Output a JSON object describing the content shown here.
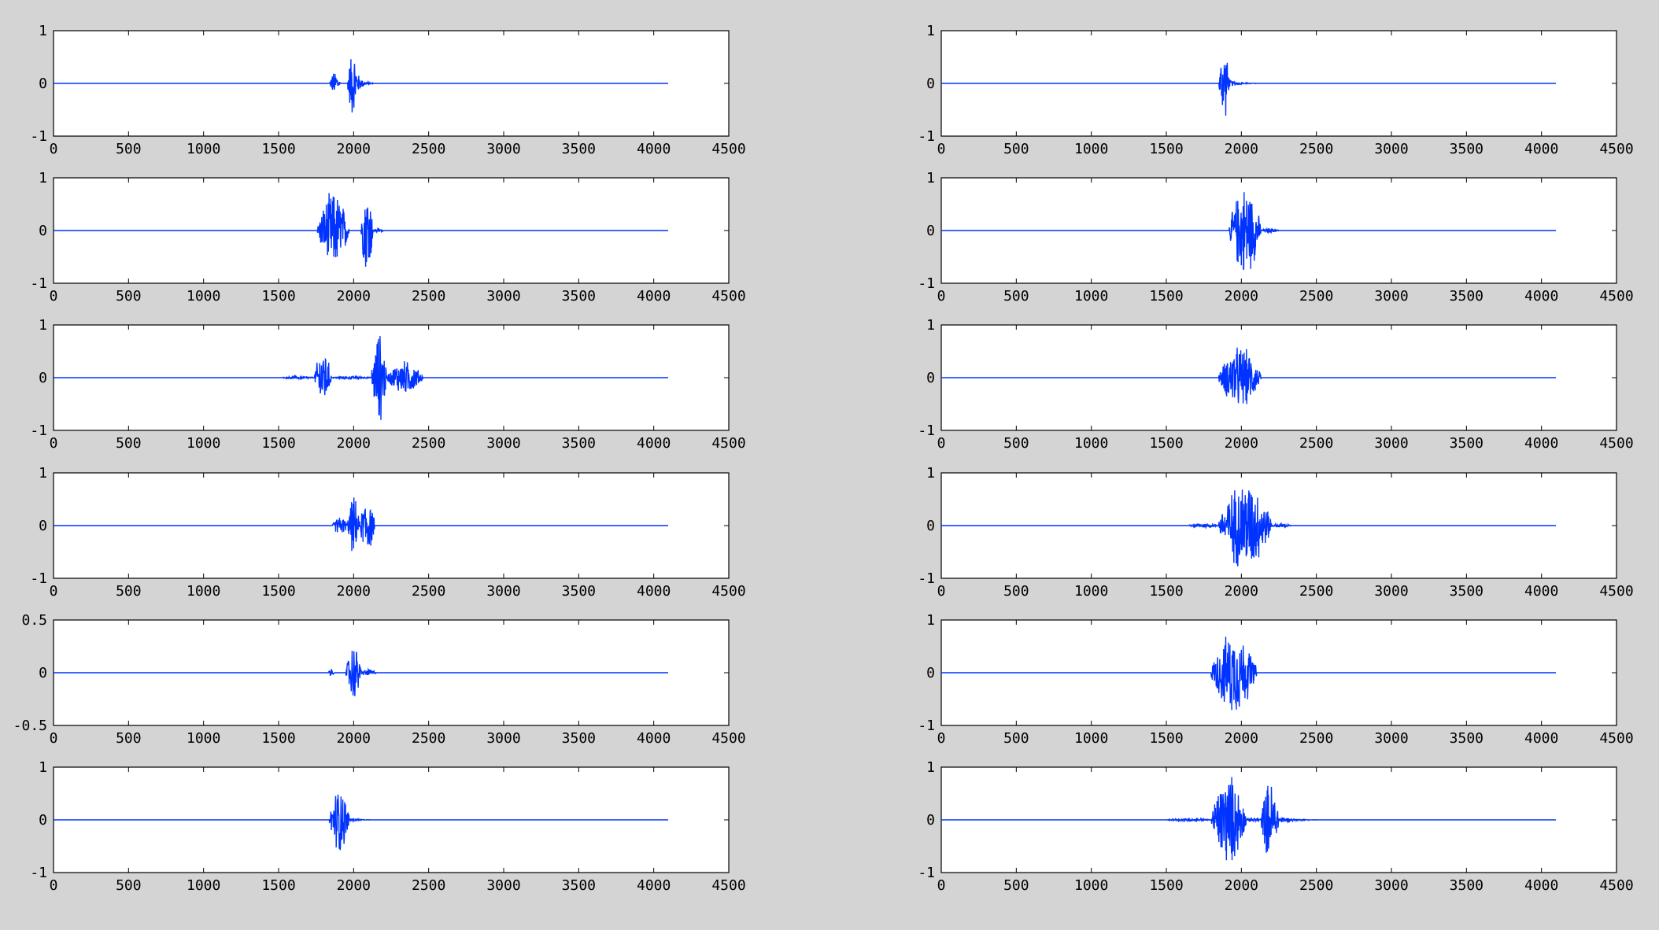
{
  "figure": {
    "background": "#d4d4d4",
    "axes_background": "#ffffff",
    "line_color": "#0033ff"
  },
  "chart_data": [
    {
      "type": "line",
      "subplot": "row1-left",
      "xlim": [
        0,
        4500
      ],
      "ylim": [
        -1,
        1
      ],
      "xticks": [
        0,
        500,
        1000,
        1500,
        2000,
        2500,
        3000,
        3500,
        4000,
        4500
      ],
      "xtick_labels": [
        "0",
        "500",
        "1000",
        "1500",
        "2000",
        "2500",
        "3000",
        "3500",
        "4000",
        "4500"
      ],
      "yticks": [
        -1,
        0,
        1
      ],
      "ytick_labels": [
        "-1",
        "0",
        "1"
      ],
      "series": [
        {
          "x_range": [
            0,
            4096
          ],
          "segments": [
            {
              "start": 1840,
              "end": 1910,
              "amp": 0.25
            },
            {
              "start": 1960,
              "end": 2030,
              "amp": 0.7
            },
            {
              "start": 2030,
              "end": 2130,
              "amp": 0.2,
              "decay": true
            }
          ]
        }
      ]
    },
    {
      "type": "line",
      "subplot": "row1-right",
      "xlim": [
        0,
        4500
      ],
      "ylim": [
        -1,
        1
      ],
      "xticks": [
        0,
        500,
        1000,
        1500,
        2000,
        2500,
        3000,
        3500,
        4000,
        4500
      ],
      "xtick_labels": [
        "0",
        "500",
        "1000",
        "1500",
        "2000",
        "2500",
        "3000",
        "3500",
        "4000",
        "4500"
      ],
      "yticks": [
        -1,
        0,
        1
      ],
      "ytick_labels": [
        "-1",
        "0",
        "1"
      ],
      "series": [
        {
          "x_range": [
            0,
            4096
          ],
          "segments": [
            {
              "start": 1850,
              "end": 1920,
              "amp": 0.75
            },
            {
              "start": 1920,
              "end": 2120,
              "amp": 0.08,
              "decay": true
            }
          ]
        }
      ]
    },
    {
      "type": "line",
      "subplot": "row2-left",
      "xlim": [
        0,
        4500
      ],
      "ylim": [
        -1,
        1
      ],
      "xticks": [
        0,
        500,
        1000,
        1500,
        2000,
        2500,
        3000,
        3500,
        4000,
        4500
      ],
      "xtick_labels": [
        "0",
        "500",
        "1000",
        "1500",
        "2000",
        "2500",
        "3000",
        "3500",
        "4000",
        "4500"
      ],
      "yticks": [
        -1,
        0,
        1
      ],
      "ytick_labels": [
        "-1",
        "0",
        "1"
      ],
      "series": [
        {
          "x_range": [
            0,
            4096
          ],
          "segments": [
            {
              "start": 1760,
              "end": 1970,
              "amp": 0.8
            },
            {
              "start": 2050,
              "end": 2130,
              "amp": 0.95
            },
            {
              "start": 2130,
              "end": 2200,
              "amp": 0.05
            }
          ]
        }
      ]
    },
    {
      "type": "line",
      "subplot": "row2-right",
      "xlim": [
        0,
        4500
      ],
      "ylim": [
        -1,
        1
      ],
      "xticks": [
        0,
        500,
        1000,
        1500,
        2000,
        2500,
        3000,
        3500,
        4000,
        4500
      ],
      "xtick_labels": [
        "0",
        "500",
        "1000",
        "1500",
        "2000",
        "2500",
        "3000",
        "3500",
        "4000",
        "4500"
      ],
      "yticks": [
        -1,
        0,
        1
      ],
      "ytick_labels": [
        "-1",
        "0",
        "1"
      ],
      "series": [
        {
          "x_range": [
            0,
            4096
          ],
          "segments": [
            {
              "start": 1920,
              "end": 2130,
              "amp": 0.95
            },
            {
              "start": 2130,
              "end": 2250,
              "amp": 0.05
            }
          ]
        }
      ]
    },
    {
      "type": "line",
      "subplot": "row3-left",
      "xlim": [
        0,
        4500
      ],
      "ylim": [
        -1,
        1
      ],
      "xticks": [
        0,
        500,
        1000,
        1500,
        2000,
        2500,
        3000,
        3500,
        4000,
        4500
      ],
      "xtick_labels": [
        "0",
        "500",
        "1000",
        "1500",
        "2000",
        "2500",
        "3000",
        "3500",
        "4000",
        "4500"
      ],
      "yticks": [
        -1,
        0,
        1
      ],
      "ytick_labels": [
        "-1",
        "0",
        "1"
      ],
      "series": [
        {
          "x_range": [
            0,
            4096
          ],
          "segments": [
            {
              "start": 1520,
              "end": 1740,
              "amp": 0.03
            },
            {
              "start": 1740,
              "end": 1850,
              "amp": 0.6
            },
            {
              "start": 1850,
              "end": 2120,
              "amp": 0.03
            },
            {
              "start": 2120,
              "end": 2220,
              "amp": 0.95
            },
            {
              "start": 2220,
              "end": 2460,
              "amp": 0.35
            }
          ]
        }
      ]
    },
    {
      "type": "line",
      "subplot": "row3-right",
      "xlim": [
        0,
        4500
      ],
      "ylim": [
        -1,
        1
      ],
      "xticks": [
        0,
        500,
        1000,
        1500,
        2000,
        2500,
        3000,
        3500,
        4000,
        4500
      ],
      "xtick_labels": [
        "0",
        "500",
        "1000",
        "1500",
        "2000",
        "2500",
        "3000",
        "3500",
        "4000",
        "4500"
      ],
      "yticks": [
        -1,
        0,
        1
      ],
      "ytick_labels": [
        "-1",
        "0",
        "1"
      ],
      "series": [
        {
          "x_range": [
            0,
            4096
          ],
          "segments": [
            {
              "start": 1850,
              "end": 2130,
              "amp": 0.65
            }
          ]
        }
      ]
    },
    {
      "type": "line",
      "subplot": "row4-left",
      "xlim": [
        0,
        4500
      ],
      "ylim": [
        -1,
        1
      ],
      "xticks": [
        0,
        500,
        1000,
        1500,
        2000,
        2500,
        3000,
        3500,
        4000,
        4500
      ],
      "xtick_labels": [
        "0",
        "500",
        "1000",
        "1500",
        "2000",
        "2500",
        "3000",
        "3500",
        "4000",
        "4500"
      ],
      "yticks": [
        -1,
        0,
        1
      ],
      "ytick_labels": [
        "-1",
        "0",
        "1"
      ],
      "series": [
        {
          "x_range": [
            0,
            4096
          ],
          "segments": [
            {
              "start": 1860,
              "end": 1960,
              "amp": 0.2
            },
            {
              "start": 1960,
              "end": 2040,
              "amp": 0.6
            },
            {
              "start": 2040,
              "end": 2140,
              "amp": 0.6
            }
          ]
        }
      ]
    },
    {
      "type": "line",
      "subplot": "row4-right",
      "xlim": [
        0,
        4500
      ],
      "ylim": [
        -1,
        1
      ],
      "xticks": [
        0,
        500,
        1000,
        1500,
        2000,
        2500,
        3000,
        3500,
        4000,
        4500
      ],
      "xtick_labels": [
        "0",
        "500",
        "1000",
        "1500",
        "2000",
        "2500",
        "3000",
        "3500",
        "4000",
        "4500"
      ],
      "yticks": [
        -1,
        0,
        1
      ],
      "ytick_labels": [
        "-1",
        "0",
        "1"
      ],
      "series": [
        {
          "x_range": [
            0,
            4096
          ],
          "segments": [
            {
              "start": 1650,
              "end": 1850,
              "amp": 0.05
            },
            {
              "start": 1850,
              "end": 2200,
              "amp": 0.95
            },
            {
              "start": 2200,
              "end": 2330,
              "amp": 0.05
            }
          ]
        }
      ]
    },
    {
      "type": "line",
      "subplot": "row5-left",
      "xlim": [
        0,
        4500
      ],
      "ylim": [
        -0.5,
        0.5
      ],
      "xticks": [
        0,
        500,
        1000,
        1500,
        2000,
        2500,
        3000,
        3500,
        4000,
        4500
      ],
      "xtick_labels": [
        "0",
        "500",
        "1000",
        "1500",
        "2000",
        "2500",
        "3000",
        "3500",
        "4000",
        "4500"
      ],
      "yticks": [
        -0.5,
        0,
        0.5
      ],
      "ytick_labels": [
        "-0.5",
        "0",
        "0.5"
      ],
      "series": [
        {
          "x_range": [
            0,
            4096
          ],
          "segments": [
            {
              "start": 1830,
              "end": 1870,
              "amp": 0.04
            },
            {
              "start": 1950,
              "end": 2050,
              "amp": 0.3
            },
            {
              "start": 2050,
              "end": 2150,
              "amp": 0.04
            }
          ]
        }
      ]
    },
    {
      "type": "line",
      "subplot": "row5-right",
      "xlim": [
        0,
        4500
      ],
      "ylim": [
        -1,
        1
      ],
      "xticks": [
        0,
        500,
        1000,
        1500,
        2000,
        2500,
        3000,
        3500,
        4000,
        4500
      ],
      "xtick_labels": [
        "0",
        "500",
        "1000",
        "1500",
        "2000",
        "2500",
        "3000",
        "3500",
        "4000",
        "4500"
      ],
      "yticks": [
        -1,
        0,
        1
      ],
      "ytick_labels": [
        "-1",
        "0",
        "1"
      ],
      "series": [
        {
          "x_range": [
            0,
            4096
          ],
          "segments": [
            {
              "start": 1800,
              "end": 2100,
              "amp": 0.85
            }
          ]
        }
      ]
    },
    {
      "type": "line",
      "subplot": "row6-left",
      "xlim": [
        0,
        4500
      ],
      "ylim": [
        -1,
        1
      ],
      "xticks": [
        0,
        500,
        1000,
        1500,
        2000,
        2500,
        3000,
        3500,
        4000,
        4500
      ],
      "xtick_labels": [
        "0",
        "500",
        "1000",
        "1500",
        "2000",
        "2500",
        "3000",
        "3500",
        "4000",
        "4500"
      ],
      "yticks": [
        -1,
        0,
        1
      ],
      "ytick_labels": [
        "-1",
        "0",
        "1"
      ],
      "series": [
        {
          "x_range": [
            0,
            4096
          ],
          "segments": [
            {
              "start": 1840,
              "end": 1970,
              "amp": 0.7
            },
            {
              "start": 1970,
              "end": 2120,
              "amp": 0.06,
              "decay": true
            }
          ]
        }
      ]
    },
    {
      "type": "line",
      "subplot": "row6-right",
      "xlim": [
        0,
        4500
      ],
      "ylim": [
        -1,
        1
      ],
      "xticks": [
        0,
        500,
        1000,
        1500,
        2000,
        2500,
        3000,
        3500,
        4000,
        4500
      ],
      "xtick_labels": [
        "0",
        "500",
        "1000",
        "1500",
        "2000",
        "2500",
        "3000",
        "3500",
        "4000",
        "4500"
      ],
      "yticks": [
        -1,
        0,
        1
      ],
      "ytick_labels": [
        "-1",
        "0",
        "1"
      ],
      "series": [
        {
          "x_range": [
            0,
            4096
          ],
          "segments": [
            {
              "start": 1500,
              "end": 1800,
              "amp": 0.03
            },
            {
              "start": 1800,
              "end": 2030,
              "amp": 0.95
            },
            {
              "start": 2030,
              "end": 2130,
              "amp": 0.05
            },
            {
              "start": 2130,
              "end": 2250,
              "amp": 0.8
            },
            {
              "start": 2250,
              "end": 2500,
              "amp": 0.08,
              "decay": true
            }
          ]
        }
      ]
    }
  ]
}
